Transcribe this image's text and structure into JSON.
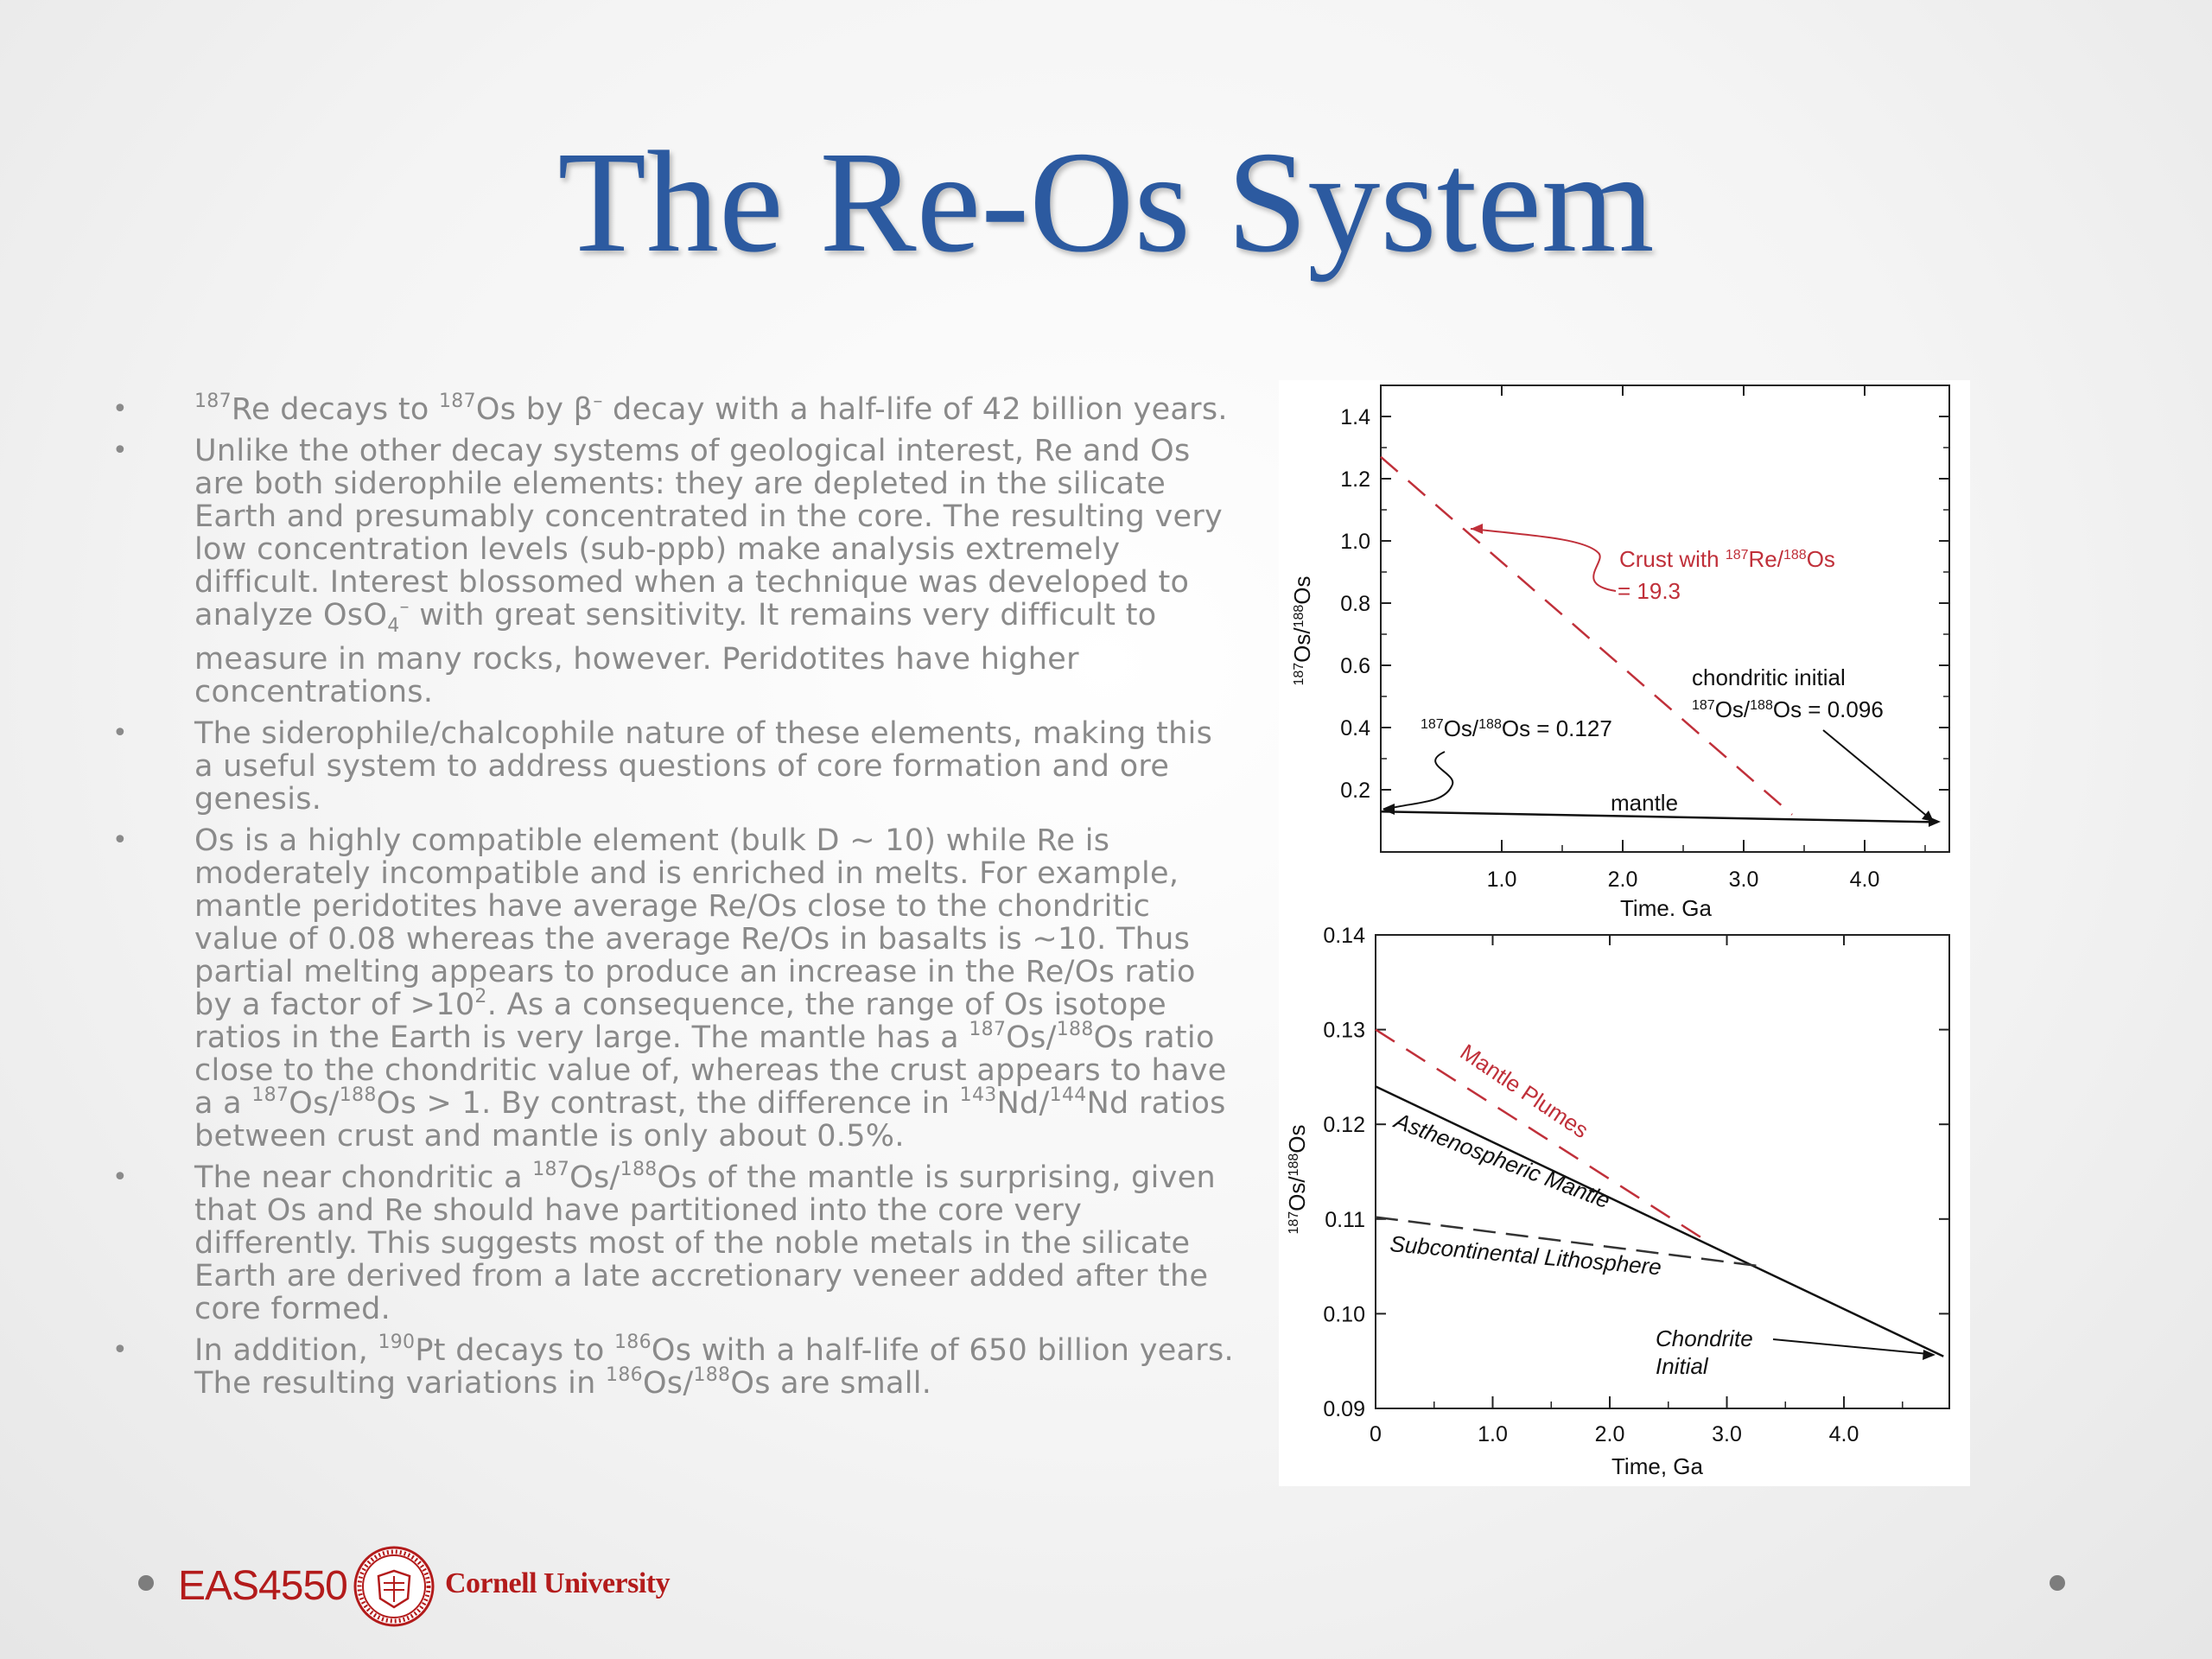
{
  "title": "The Re-Os System",
  "bullets": [
    {
      "html": "<sup class=\"iso\">187</sup>Re decays to <sup class=\"iso\">187</sup>Os by β<sup class=\"iso\">–</sup> decay with a half-life of 42 billion years."
    },
    {
      "html": "Unlike the other decay systems of geological interest, Re and Os are both siderophile elements: they are depleted in the silicate Earth and presumably concentrated in the core. The resulting very low concentration levels (sub-ppb) make analysis extremely difficult. Interest blossomed when a technique was developed to analyze OsO<sub style=\"font-size:22px\">4</sub><sup class=\"iso\">–</sup> with great sensitivity. It remains very difficult to measure in many rocks, however. Peridotites have higher concentrations."
    },
    {
      "html": "The siderophile/chalcophile nature of these elements, making this a useful system to address questions of core formation and ore genesis."
    },
    {
      "html": "Os is a highly compatible element (bulk D ~ 10) while Re is moderately incompatible and is enriched in melts. For example, mantle peridotites have average Re/Os close to the chondritic value of 0.08 whereas the average Re/Os in basalts is ~10. Thus partial melting appears to produce an increase in the Re/Os ratio by a factor of >10<sup class=\"iso\">2</sup>. As a consequence, the range of Os isotope ratios in the Earth is very large. The mantle has a <sup class=\"iso\">187</sup>Os/<sup class=\"iso\">188</sup>Os ratio close to the chondritic value of, whereas the crust appears to have a a <sup class=\"iso\">187</sup>Os/<sup class=\"iso\">188</sup>Os > 1. By contrast, the difference in <sup class=\"iso\">143</sup>Nd/<sup class=\"iso\">144</sup>Nd ratios between crust and mantle is only about 0.5%."
    },
    {
      "html": "The near chondritic a <sup class=\"iso\">187</sup>Os/<sup class=\"iso\">188</sup>Os of the mantle is surprising, given that Os and Re should have partitioned into the core very differently. This suggests most of the noble metals in the silicate Earth are derived from a late accretionary veneer added after the core formed."
    },
    {
      "html": "In addition, <sup class=\"iso\">190</sup>Pt decays to <sup class=\"iso\">186</sup>Os with a half-life of 650 billion years. The resulting variations in <sup class=\"iso\">186</sup>Os/<sup class=\"iso\">188</sup>Os are small."
    }
  ],
  "footer": {
    "course": "EAS4550",
    "university": "Cornell University"
  },
  "colors": {
    "title": "#2c5aa0",
    "accent_red": "#c0303a",
    "body_text": "#8a8a8a"
  },
  "chart_data": [
    {
      "type": "line",
      "xlabel": "Time, Ga",
      "ylabel_html": "187Os/188Os",
      "xlim": [
        0,
        4.7
      ],
      "ylim": [
        0,
        1.5
      ],
      "xticks": [
        "1.0",
        "2.0",
        "3.0",
        "4.0"
      ],
      "yticks": [
        "0.2",
        "0.4",
        "0.6",
        "0.8",
        "1.0",
        "1.2",
        "1.4"
      ],
      "series": [
        {
          "name": "Crust with 187Re/188Os = 19.3",
          "style": "dashed-red",
          "x": [
            0,
            3.4
          ],
          "y": [
            1.27,
            0.12
          ]
        },
        {
          "name": "mantle",
          "style": "solid-black",
          "x": [
            0,
            4.6
          ],
          "y": [
            0.13,
            0.096
          ]
        }
      ],
      "annotations": {
        "crust": [
          "Crust with ",
          "187",
          "Re/",
          "188",
          "Os",
          "= 19.3"
        ],
        "chondritic": [
          "chondritic initial",
          "187",
          "Os/",
          "188",
          "Os = 0.096"
        ],
        "mantle_ratio": [
          "187",
          "Os/",
          "188",
          "Os = 0.127"
        ],
        "mantle": "mantle"
      }
    },
    {
      "type": "line",
      "xlabel": "Time, Ga",
      "ylabel_html": "187Os/188Os",
      "xlim": [
        0,
        4.9
      ],
      "ylim": [
        0.09,
        0.14
      ],
      "xticks": [
        "0",
        "1.0",
        "2.0",
        "3.0",
        "4.0"
      ],
      "yticks": [
        "0.09",
        "0.10",
        "0.11",
        "0.12",
        "0.13",
        "0.14"
      ],
      "series": [
        {
          "name": "Mantle Plumes",
          "style": "dashed-red",
          "x": [
            0,
            2.85
          ],
          "y": [
            0.13,
            0.1075
          ]
        },
        {
          "name": "Asthenospheric Mantle",
          "style": "solid-black",
          "x": [
            0,
            4.85
          ],
          "y": [
            0.124,
            0.0955
          ]
        },
        {
          "name": "Subcontinental Lithosphere",
          "style": "dashed-black",
          "x": [
            0,
            3.3
          ],
          "y": [
            0.1102,
            0.105
          ]
        }
      ],
      "annotations": {
        "chondrite_line1": "Chondrite",
        "chondrite_line2": "Initial"
      }
    }
  ]
}
